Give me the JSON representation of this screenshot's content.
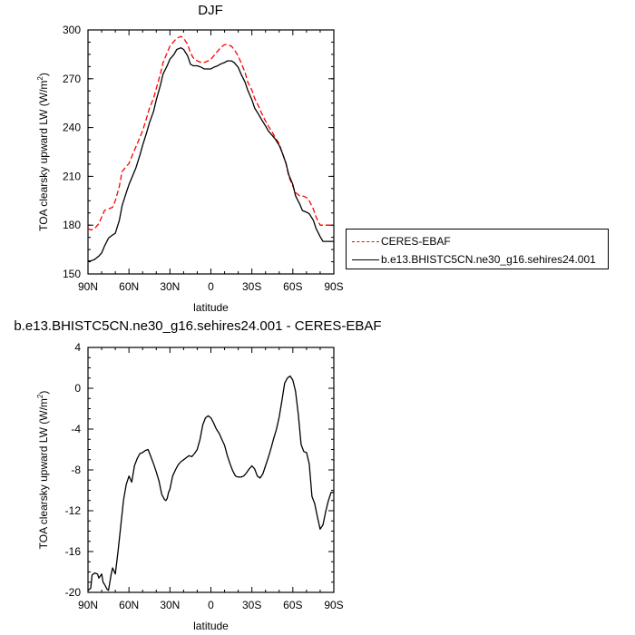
{
  "chart_data": [
    {
      "type": "line",
      "title": "DJF",
      "xlabel": "latitude",
      "ylabel_main": "TOA clearsky upward LW (W/m",
      "ylabel_sup": "2",
      "ylabel_end": ")",
      "x_ticks": [
        "90N",
        "60N",
        "30N",
        "0",
        "30S",
        "60S",
        "90S"
      ],
      "x_tick_values": [
        90,
        60,
        30,
        0,
        -30,
        -60,
        -90
      ],
      "x_range": [
        90,
        -90
      ],
      "y_ticks": [
        "150",
        "180",
        "210",
        "240",
        "270",
        "300"
      ],
      "y_tick_values": [
        150,
        180,
        210,
        240,
        270,
        300
      ],
      "ylim": [
        150,
        300
      ],
      "legend_position": "right",
      "series": [
        {
          "name": "CERES-EBAF",
          "color": "#ff0000",
          "dash": "dashed",
          "x": [
            90,
            88,
            85,
            82,
            80,
            78,
            75,
            72,
            70,
            67,
            65,
            62,
            60,
            57,
            55,
            52,
            50,
            47,
            45,
            42,
            40,
            37,
            35,
            32,
            30,
            27,
            25,
            22,
            20,
            17,
            15,
            13,
            12,
            10,
            7,
            5,
            2,
            0,
            -2,
            -5,
            -7,
            -10,
            -12,
            -15,
            -17,
            -20,
            -22,
            -25,
            -27,
            -30,
            -32,
            -35,
            -37,
            -40,
            -42,
            -45,
            -47,
            -50,
            -52,
            -55,
            -57,
            -60,
            -62,
            -65,
            -67,
            -70,
            -72,
            -75,
            -77,
            -80,
            -82,
            -85,
            -87,
            -90
          ],
          "y": [
            178,
            177,
            178,
            181,
            185,
            189,
            190,
            191,
            195,
            204,
            213,
            216,
            218,
            224,
            228,
            234,
            238,
            246,
            252,
            258,
            264,
            273,
            280,
            286,
            290,
            293,
            295,
            296,
            295,
            291,
            286,
            283,
            282,
            281,
            280,
            280,
            281,
            282,
            284,
            287,
            289,
            291,
            291,
            290,
            288,
            284,
            280,
            274,
            268,
            263,
            258,
            253,
            249,
            244,
            241,
            237,
            234,
            230,
            225,
            218,
            210,
            204,
            200,
            198,
            198,
            197,
            195,
            190,
            185,
            180,
            180,
            180,
            180,
            180
          ]
        },
        {
          "name": "b.e13.BHISTC5CN.ne30_g16.sehires24.001",
          "color": "#000000",
          "dash": "solid",
          "x": [
            90,
            88,
            85,
            82,
            80,
            78,
            75,
            72,
            70,
            67,
            65,
            62,
            60,
            57,
            55,
            52,
            50,
            47,
            45,
            42,
            40,
            37,
            35,
            32,
            30,
            27,
            25,
            22,
            20,
            17,
            15,
            13,
            12,
            10,
            7,
            5,
            2,
            0,
            -2,
            -5,
            -7,
            -10,
            -12,
            -15,
            -17,
            -20,
            -22,
            -25,
            -27,
            -30,
            -32,
            -35,
            -37,
            -40,
            -42,
            -45,
            -47,
            -50,
            -52,
            -55,
            -57,
            -60,
            -62,
            -65,
            -67,
            -70,
            -72,
            -75,
            -77,
            -80,
            -82,
            -85,
            -87,
            -90
          ],
          "y": [
            158,
            158,
            159,
            161,
            163,
            167,
            172,
            174,
            175,
            183,
            192,
            200,
            205,
            211,
            215,
            223,
            229,
            237,
            243,
            250,
            257,
            266,
            273,
            278,
            282,
            285,
            288,
            289,
            288,
            284,
            279,
            278,
            278,
            278,
            277,
            276,
            276,
            276,
            277,
            278,
            279,
            280,
            281,
            281,
            280,
            277,
            273,
            268,
            263,
            257,
            252,
            248,
            245,
            241,
            238,
            235,
            233,
            229,
            225,
            218,
            211,
            205,
            198,
            193,
            189,
            188,
            187,
            183,
            178,
            173,
            170,
            170,
            170,
            170
          ]
        }
      ]
    },
    {
      "type": "line",
      "title": "b.e13.BHISTC5CN.ne30_g16.sehires24.001 - CERES-EBAF",
      "xlabel": "latitude",
      "ylabel_main": "TOA clearsky upward LW (W/m",
      "ylabel_sup": "2",
      "ylabel_end": ")",
      "x_ticks": [
        "90N",
        "60N",
        "30N",
        "0",
        "30S",
        "60S",
        "90S"
      ],
      "x_tick_values": [
        90,
        60,
        30,
        0,
        -30,
        -60,
        -90
      ],
      "x_range": [
        90,
        -90
      ],
      "y_ticks": [
        "-20",
        "-16",
        "-12",
        "-8",
        "-4",
        "0",
        "4"
      ],
      "y_tick_values": [
        -20,
        -16,
        -12,
        -8,
        -4,
        0,
        4
      ],
      "ylim": [
        -20,
        4
      ],
      "series": [
        {
          "color": "#000000",
          "dash": "solid",
          "x": [
            90,
            88,
            87,
            85,
            83,
            82,
            80,
            79,
            78,
            76,
            75,
            73,
            72,
            70,
            68,
            66,
            64,
            62,
            60,
            58,
            56,
            54,
            52,
            50,
            48,
            46,
            44,
            42,
            40,
            38,
            36,
            34,
            33,
            32,
            31,
            30,
            28,
            26,
            24,
            22,
            20,
            18,
            16,
            14,
            12,
            10,
            8,
            6,
            4,
            2,
            0,
            -2,
            -4,
            -6,
            -8,
            -10,
            -12,
            -14,
            -16,
            -18,
            -20,
            -22,
            -24,
            -26,
            -28,
            -30,
            -32,
            -34,
            -36,
            -38,
            -40,
            -42,
            -44,
            -46,
            -48,
            -50,
            -52,
            -54,
            -56,
            -58,
            -60,
            -62,
            -64,
            -66,
            -68,
            -70,
            -72,
            -74,
            -76,
            -78,
            -80,
            -82,
            -84,
            -86,
            -88,
            -90
          ],
          "y": [
            -19.8,
            -19.6,
            -18.3,
            -18.1,
            -18.2,
            -18.6,
            -18.2,
            -19.0,
            -19.2,
            -19.7,
            -19.8,
            -18.2,
            -17.6,
            -18.2,
            -16.0,
            -13.5,
            -11.0,
            -9.4,
            -8.6,
            -9.2,
            -7.6,
            -6.9,
            -6.4,
            -6.3,
            -6.1,
            -6.0,
            -6.7,
            -7.4,
            -8.2,
            -9.1,
            -10.4,
            -10.9,
            -11.0,
            -10.8,
            -10.2,
            -9.9,
            -8.6,
            -8.0,
            -7.5,
            -7.2,
            -7.0,
            -6.8,
            -6.6,
            -6.7,
            -6.4,
            -6.0,
            -5.0,
            -3.6,
            -2.9,
            -2.7,
            -2.9,
            -3.4,
            -4.0,
            -4.4,
            -5.0,
            -5.6,
            -6.6,
            -7.4,
            -8.1,
            -8.6,
            -8.7,
            -8.7,
            -8.6,
            -8.3,
            -7.9,
            -7.6,
            -7.9,
            -8.6,
            -8.8,
            -8.4,
            -7.6,
            -6.8,
            -5.9,
            -4.9,
            -4.0,
            -2.8,
            -1.2,
            0.5,
            1.0,
            1.2,
            0.8,
            -0.3,
            -2.6,
            -5.5,
            -6.2,
            -6.3,
            -7.4,
            -10.6,
            -11.3,
            -12.6,
            -13.8,
            -13.4,
            -12.1,
            -11.0,
            -10.2,
            -10.2
          ]
        }
      ]
    }
  ]
}
